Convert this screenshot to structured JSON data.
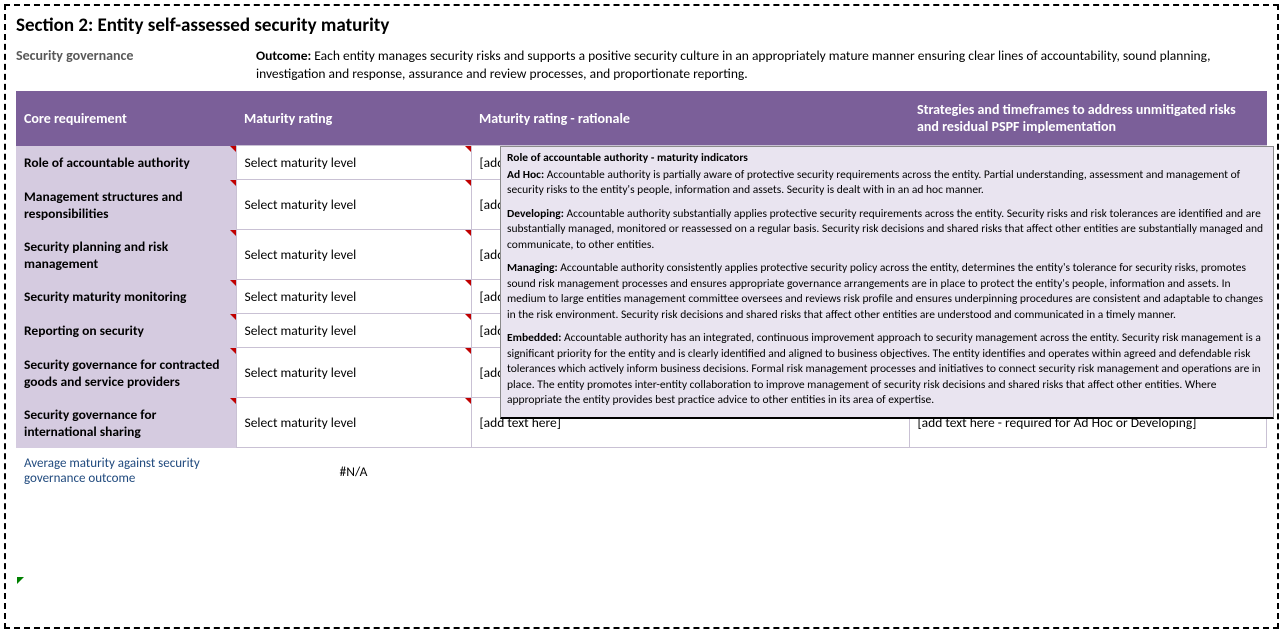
{
  "section": {
    "title": "Section 2: Entity self-assessed security maturity",
    "subhead": "Security governance",
    "outcome_label": "Outcome:",
    "outcome_text": "Each entity manages security risks and supports a positive security culture in an appropriately mature manner ensuring clear lines of accountability, sound planning, investigation and response, assurance and review processes, and proportionate reporting."
  },
  "columns": {
    "req": "Core requirement",
    "rating": "Maturity rating",
    "rationale": "Maturity rating - rationale",
    "strat": "Strategies and timeframes to address unmitigated risks and residual PSPF implementation"
  },
  "col_widths": {
    "req": "220px",
    "rating": "235px",
    "rationale": "438px",
    "strat": "auto"
  },
  "placeholders": {
    "rating": "Select maturity level",
    "rationale": "[add text here]",
    "strat": "[add text here - required for Ad Hoc or Developing]"
  },
  "rows": [
    {
      "req": "Role of accountable authority"
    },
    {
      "req": "Management structures and responsibilities"
    },
    {
      "req": "Security planning and risk management"
    },
    {
      "req": "Security maturity monitoring"
    },
    {
      "req": "Reporting on security"
    },
    {
      "req": "Security governance for contracted goods and service providers"
    },
    {
      "req": "Security governance for international sharing"
    }
  ],
  "average": {
    "label": "Average maturity against security governance outcome",
    "value": "#N/A"
  },
  "tooltip": {
    "title": "Role of accountable authority - maturity indicators",
    "levels": [
      {
        "name": "Ad Hoc:",
        "text": "Accountable authority is partially aware of protective security requirements across the entity. Partial understanding, assessment and management of security risks to the entity's people, information and assets. Security is dealt with in an ad hoc manner."
      },
      {
        "name": "Developing:",
        "text": "Accountable authority substantially applies protective security requirements across the entity. Security risks and risk tolerances are identified and are substantially managed, monitored or reassessed on a regular basis. Security risk decisions and shared risks that affect other entities are substantially managed and communicate, to other entities."
      },
      {
        "name": "Managing:",
        "text": "Accountable authority consistently applies protective security policy across the entity, determines the entity's tolerance for security risks, promotes sound risk management processes and ensures appropriate governance arrangements are in place to protect the entity's people, information and assets. In medium to large entities management committee oversees and reviews risk profile and ensures underpinning procedures are consistent and adaptable to changes in the risk environment.  Security risk decisions and shared risks that affect other entities are understood and communicated in a timely manner."
      },
      {
        "name": "Embedded:",
        "text": "Accountable authority has an integrated, continuous improvement approach to security management across the entity. Security risk management is a significant priority for the entity and is clearly identified and aligned to business objectives. The entity identifies and operates within agreed and defendable risk tolerances which actively inform business decisions. Formal risk management processes and initiatives to connect security risk management and operations are in place. The entity promotes inter-entity collaboration to improve management of security risk decisions and shared risks that affect other entities. Where appropriate the entity provides best practice advice to other entities in its area of expertise."
      }
    ]
  },
  "colors": {
    "header_bg": "#7b5f99",
    "req_bg": "#d5cbe0",
    "tooltip_bg": "#e9e4f0",
    "comment_marker": "#c00000",
    "avg_label_color": "#1f497d"
  }
}
